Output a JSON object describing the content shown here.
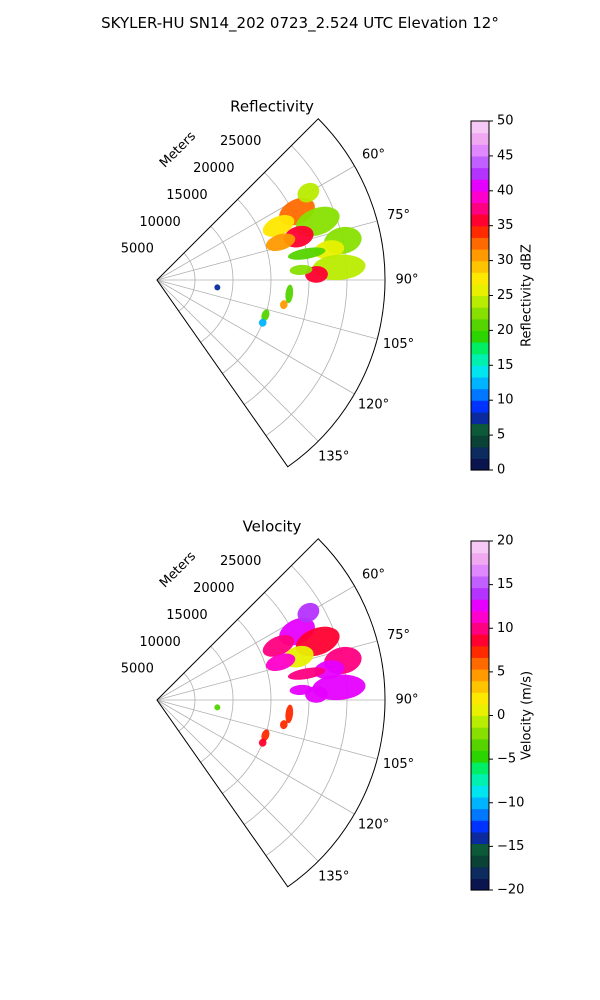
{
  "figure": {
    "title": "SKYLER-HU  SN14_202  0723_2.524 UTC Elevation 12°"
  },
  "chart_data": [
    {
      "type": "heatmap",
      "projection": "polar-sector",
      "title": "Reflectivity",
      "radial_label": "Meters",
      "radial_ticks": [
        5000,
        10000,
        15000,
        20000,
        25000
      ],
      "radial_tick_labels": [
        "5000",
        "10000",
        "15000",
        "20000",
        "25000"
      ],
      "rlim": [
        0,
        30000
      ],
      "theta_range_deg": [
        45,
        145
      ],
      "theta_ticks": [
        60,
        75,
        90,
        105,
        120,
        135
      ],
      "theta_tick_labels": [
        "60°",
        "75°",
        "90°",
        "105°",
        "120°",
        "135°"
      ],
      "grid": true,
      "colorbar": {
        "label": "Reflectivity dBZ",
        "range": [
          0,
          50
        ],
        "ticks": [
          0,
          5,
          10,
          15,
          20,
          25,
          30,
          35,
          40,
          45,
          50
        ],
        "tick_labels": [
          "0",
          "5",
          "10",
          "15",
          "20",
          "25",
          "30",
          "35",
          "40",
          "45",
          "50"
        ],
        "colors": [
          "#0a1550",
          "#0d2b5e",
          "#0b4236",
          "#0d5a3a",
          "#0a2a9e",
          "#0033ff",
          "#0077ff",
          "#00b4ff",
          "#00e5ee",
          "#00f0b0",
          "#00ee66",
          "#2cd400",
          "#55d400",
          "#88e000",
          "#b8ec00",
          "#e8f000",
          "#ffe800",
          "#ffc400",
          "#ff9a00",
          "#ff6a00",
          "#ff2a00",
          "#ff0030",
          "#ff0080",
          "#ff00cc",
          "#e600ff",
          "#b533ff",
          "#c060ff",
          "#e088ff",
          "#f0a8f0",
          "#f6c8f6"
        ]
      },
      "echoes": [
        {
          "theta": 64,
          "r": 20500,
          "dt": 4.5,
          "dr": 2500,
          "value": 33
        },
        {
          "theta": 66,
          "r": 17500,
          "dt": 4.0,
          "dr": 2200,
          "value": 27
        },
        {
          "theta": 60,
          "r": 23000,
          "dt": 3.0,
          "dr": 1500,
          "value": 24
        },
        {
          "theta": 70,
          "r": 22500,
          "dt": 4.5,
          "dr": 3000,
          "value": 22
        },
        {
          "theta": 73,
          "r": 19500,
          "dt": 4.0,
          "dr": 2000,
          "value": 36
        },
        {
          "theta": 73,
          "r": 17000,
          "dt": 3.5,
          "dr": 2000,
          "value": 30
        },
        {
          "theta": 78,
          "r": 25000,
          "dt": 4.0,
          "dr": 2500,
          "value": 23
        },
        {
          "theta": 80,
          "r": 23000,
          "dt": 3.0,
          "dr": 2000,
          "value": 26
        },
        {
          "theta": 80,
          "r": 20000,
          "dt": 2.0,
          "dr": 2500,
          "value": 21
        },
        {
          "theta": 86,
          "r": 24000,
          "dt": 4.0,
          "dr": 3500,
          "value": 24
        },
        {
          "theta": 88,
          "r": 21000,
          "dt": 3.0,
          "dr": 1500,
          "value": 35
        },
        {
          "theta": 86,
          "r": 19000,
          "dt": 2.0,
          "dr": 1500,
          "value": 22
        },
        {
          "theta": 96,
          "r": 17500,
          "dt": 4.0,
          "dr": 500,
          "value": 21
        },
        {
          "theta": 101,
          "r": 17000,
          "dt": 2.0,
          "dr": 500,
          "value": 30
        },
        {
          "theta": 108,
          "r": 15000,
          "dt": 3.0,
          "dr": 500,
          "value": 20
        },
        {
          "theta": 112,
          "r": 15000,
          "dt": 2.0,
          "dr": 500,
          "value": 13
        },
        {
          "theta": 97,
          "r": 8000,
          "dt": 1.0,
          "dr": 300,
          "value": 8
        }
      ]
    },
    {
      "type": "heatmap",
      "projection": "polar-sector",
      "title": "Velocity",
      "radial_label": "Meters",
      "radial_ticks": [
        5000,
        10000,
        15000,
        20000,
        25000
      ],
      "radial_tick_labels": [
        "5000",
        "10000",
        "15000",
        "20000",
        "25000"
      ],
      "rlim": [
        0,
        30000
      ],
      "theta_range_deg": [
        45,
        145
      ],
      "theta_ticks": [
        60,
        75,
        90,
        105,
        120,
        135
      ],
      "theta_tick_labels": [
        "60°",
        "75°",
        "90°",
        "105°",
        "120°",
        "135°"
      ],
      "grid": true,
      "colorbar": {
        "label": "Velocity (m/s)",
        "range": [
          -20,
          20
        ],
        "ticks": [
          -20,
          -15,
          -10,
          -5,
          0,
          5,
          10,
          15,
          20
        ],
        "tick_labels": [
          "−20",
          "−15",
          "−10",
          "−5",
          "0",
          "5",
          "10",
          "15",
          "20"
        ],
        "colors": [
          "#0a1550",
          "#0d2b5e",
          "#0b4236",
          "#0d5a3a",
          "#0a2a9e",
          "#0033ff",
          "#0077ff",
          "#00b4ff",
          "#00e5ee",
          "#00f0b0",
          "#00ee66",
          "#2cd400",
          "#55d400",
          "#88e000",
          "#b8ec00",
          "#e8f000",
          "#ffe800",
          "#ffc400",
          "#ff9a00",
          "#ff6a00",
          "#ff2a00",
          "#ff0030",
          "#ff0080",
          "#ff00cc",
          "#e600ff",
          "#b533ff",
          "#c060ff",
          "#e088ff",
          "#f0a8f0",
          "#f6c8f6"
        ]
      },
      "echoes": [
        {
          "theta": 64,
          "r": 20500,
          "dt": 4.5,
          "dr": 2500,
          "value": 12
        },
        {
          "theta": 66,
          "r": 17500,
          "dt": 4.0,
          "dr": 2200,
          "value": 10
        },
        {
          "theta": 60,
          "r": 23000,
          "dt": 3.0,
          "dr": 1500,
          "value": 14
        },
        {
          "theta": 70,
          "r": 22500,
          "dt": 4.5,
          "dr": 3000,
          "value": 8
        },
        {
          "theta": 73,
          "r": 19500,
          "dt": 4.0,
          "dr": 2000,
          "value": 1
        },
        {
          "theta": 73,
          "r": 17000,
          "dt": 3.5,
          "dr": 2000,
          "value": 11
        },
        {
          "theta": 78,
          "r": 25000,
          "dt": 4.0,
          "dr": 2500,
          "value": 10
        },
        {
          "theta": 80,
          "r": 23000,
          "dt": 3.0,
          "dr": 2000,
          "value": 13
        },
        {
          "theta": 80,
          "r": 20000,
          "dt": 2.0,
          "dr": 2500,
          "value": 10
        },
        {
          "theta": 86,
          "r": 24000,
          "dt": 4.0,
          "dr": 3500,
          "value": 13
        },
        {
          "theta": 88,
          "r": 21000,
          "dt": 3.0,
          "dr": 1500,
          "value": 13
        },
        {
          "theta": 86,
          "r": 19000,
          "dt": 2.0,
          "dr": 1500,
          "value": 12
        },
        {
          "theta": 96,
          "r": 17500,
          "dt": 4.0,
          "dr": 500,
          "value": 7
        },
        {
          "theta": 101,
          "r": 17000,
          "dt": 2.0,
          "dr": 500,
          "value": 7
        },
        {
          "theta": 108,
          "r": 15000,
          "dt": 3.0,
          "dr": 500,
          "value": 7
        },
        {
          "theta": 112,
          "r": 15000,
          "dt": 2.0,
          "dr": 500,
          "value": 8
        },
        {
          "theta": 97,
          "r": 8000,
          "dt": 1.0,
          "dr": 300,
          "value": -4
        }
      ]
    }
  ]
}
